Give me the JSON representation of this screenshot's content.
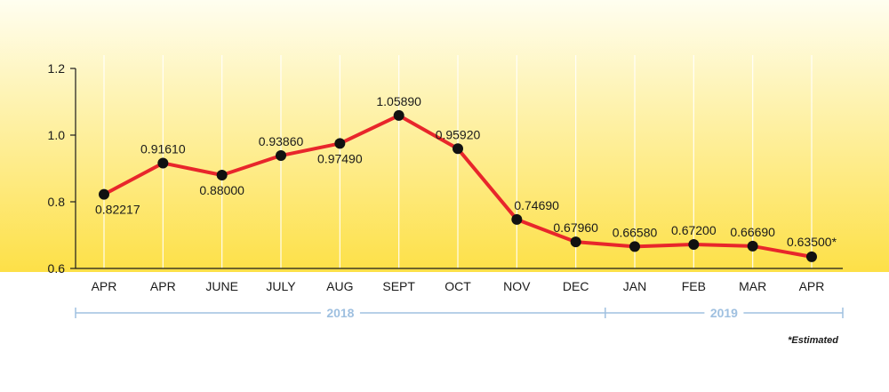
{
  "chart_data": {
    "type": "line",
    "categories": [
      "APR",
      "APR",
      "JUNE",
      "JULY",
      "AUG",
      "SEPT",
      "OCT",
      "NOV",
      "DEC",
      "JAN",
      "FEB",
      "MAR",
      "APR"
    ],
    "series": [
      {
        "values": [
          0.82217,
          0.9161,
          0.88,
          0.9386,
          0.9749,
          1.0589,
          0.9592,
          0.7469,
          0.6796,
          0.6658,
          0.672,
          0.6669,
          0.635
        ]
      }
    ],
    "data_labels": [
      "0.82217",
      "0.91610",
      "0.88000",
      "0.93860",
      "0.97490",
      "1.05890",
      "0.95920",
      "0.74690",
      "0.67960",
      "0.66580",
      "0.67200",
      "0.66690",
      "0.63500*"
    ],
    "ylim": [
      0.6,
      1.2
    ],
    "yticks": [
      "0.6",
      "0.8",
      "1.0",
      "1.2"
    ],
    "year_groups": [
      {
        "label": "2018",
        "from": 0,
        "to": 8
      },
      {
        "label": "2019",
        "from": 9,
        "to": 12
      }
    ],
    "note": "*Estimated",
    "grid": "vertical",
    "line_color": "#e8262b",
    "marker_color": "#111111",
    "background_top": "#fffef0",
    "background_bottom": "#fde047",
    "timeline_color": "#9fc0e0"
  }
}
